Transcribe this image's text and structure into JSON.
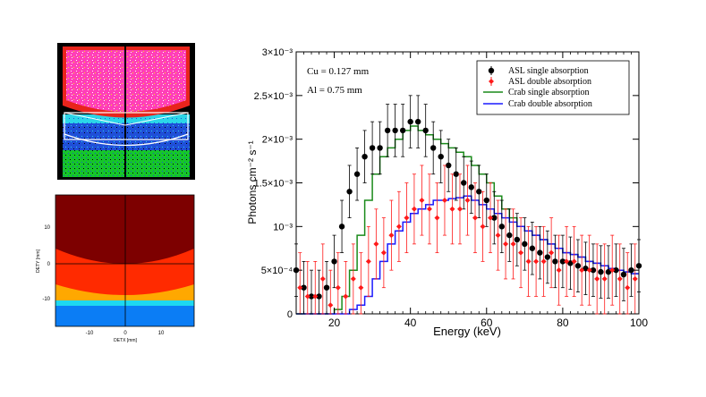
{
  "panels": {
    "detector_image": {
      "colors": {
        "frame": "#000000",
        "pink": "#ff3fb8",
        "red": "#e8241c",
        "yellow": "#f2e21a",
        "cyan": "#2bd6e8",
        "blue": "#1f4fd8",
        "green": "#15c62a",
        "white": "#ffffff"
      }
    },
    "map": {
      "xlabel": "DETX [mm]",
      "ylabel": "DETY [mm]",
      "xticks": [
        "-10",
        "0",
        "10"
      ],
      "yticks": [
        "10",
        "0",
        "-10"
      ],
      "colors": {
        "darkred": "#7d0000",
        "red": "#ff2a00",
        "orange": "#ffa800",
        "cyan": "#1ed8f0",
        "blue": "#0b7df5"
      }
    }
  },
  "chart_data": {
    "type": "line",
    "title": "",
    "xlabel": "Energy (keV)",
    "ylabel": "Photons cm⁻² s⁻¹",
    "xlim": [
      10,
      100
    ],
    "ylim": [
      0,
      0.003
    ],
    "xticks": [
      20,
      40,
      60,
      80,
      100
    ],
    "yticks": [
      0,
      0.0005,
      0.001,
      0.0015,
      0.002,
      0.0025,
      0.003
    ],
    "ytick_labels": [
      "0",
      "5×10⁻⁴",
      "10⁻³",
      "1.5×10⁻³",
      "2×10⁻³",
      "2.5×10⁻³",
      "3×10⁻³"
    ],
    "annotations": [
      "Cu = 0.127 mm",
      "Al = 0.75 mm"
    ],
    "legend": {
      "placement": "top-right",
      "entries": [
        "ASL single absorption",
        "ASL double absorption",
        "Crab single absorption",
        "Crab double absorption"
      ]
    },
    "series": [
      {
        "name": "Crab single absorption",
        "style": "step",
        "color": "#1a8a1a",
        "x": [
          10,
          12,
          14,
          16,
          18,
          20,
          22,
          24,
          26,
          28,
          30,
          32,
          34,
          36,
          38,
          40,
          42,
          44,
          46,
          48,
          50,
          52,
          54,
          56,
          58,
          60,
          62,
          64,
          66,
          68,
          70,
          72,
          74,
          76,
          78,
          80,
          82,
          84,
          86,
          88,
          90,
          92,
          94,
          96,
          98,
          100
        ],
        "values": [
          0,
          0,
          0,
          0,
          0,
          5e-05,
          0.0002,
          0.0005,
          0.0009,
          0.0013,
          0.0016,
          0.0018,
          0.0019,
          0.002,
          0.0021,
          0.00215,
          0.0021,
          0.00205,
          0.002,
          0.00195,
          0.0019,
          0.00185,
          0.0018,
          0.0017,
          0.0016,
          0.0015,
          0.00135,
          0.0012,
          0.0011,
          0.001,
          0.00095,
          0.0009,
          0.00085,
          0.0008,
          0.00075,
          0.0007,
          0.00068,
          0.00065,
          0.0006,
          0.00058,
          0.00055,
          0.00052,
          0.0005,
          0.00048,
          0.00046,
          0.00045
        ]
      },
      {
        "name": "Crab double absorption",
        "style": "step",
        "color": "#1a1aff",
        "x": [
          10,
          12,
          14,
          16,
          18,
          20,
          22,
          24,
          26,
          28,
          30,
          32,
          34,
          36,
          38,
          40,
          42,
          44,
          46,
          48,
          50,
          52,
          54,
          56,
          58,
          60,
          62,
          64,
          66,
          68,
          70,
          72,
          74,
          76,
          78,
          80,
          82,
          84,
          86,
          88,
          90,
          92,
          94,
          96,
          98,
          100
        ],
        "values": [
          0,
          0,
          0,
          0,
          0,
          0,
          0,
          5e-05,
          0.0001,
          0.0002,
          0.0004,
          0.0006,
          0.0008,
          0.00095,
          0.00105,
          0.00115,
          0.0012,
          0.00125,
          0.0013,
          0.0013,
          0.00132,
          0.00133,
          0.00135,
          0.0013,
          0.00125,
          0.0012,
          0.00115,
          0.0011,
          0.00105,
          0.001,
          0.00095,
          0.0009,
          0.00085,
          0.0008,
          0.00075,
          0.0007,
          0.00068,
          0.00065,
          0.0006,
          0.00058,
          0.00055,
          0.00052,
          0.0005,
          0.00048,
          0.00046,
          0.00045
        ]
      },
      {
        "name": "ASL single absorption",
        "style": "points+errors",
        "color": "#000000",
        "x": [
          10,
          12,
          14,
          16,
          18,
          20,
          22,
          24,
          26,
          28,
          30,
          32,
          34,
          36,
          38,
          40,
          42,
          44,
          46,
          48,
          50,
          52,
          54,
          56,
          58,
          60,
          62,
          64,
          66,
          68,
          70,
          72,
          74,
          76,
          78,
          80,
          82,
          84,
          86,
          88,
          90,
          92,
          94,
          96,
          98,
          100
        ],
        "values": [
          0.0005,
          0.0003,
          0.0002,
          0.0002,
          0.0003,
          0.0006,
          0.001,
          0.0014,
          0.0016,
          0.0018,
          0.0019,
          0.0019,
          0.0021,
          0.0021,
          0.0021,
          0.0022,
          0.0022,
          0.0021,
          0.0019,
          0.0018,
          0.0017,
          0.0016,
          0.0015,
          0.00145,
          0.0014,
          0.0013,
          0.0011,
          0.001,
          0.0009,
          0.00085,
          0.0008,
          0.00075,
          0.0007,
          0.00065,
          0.0006,
          0.0006,
          0.00058,
          0.00055,
          0.00052,
          0.0005,
          0.00048,
          0.00048,
          0.0005,
          0.00045,
          0.0005,
          0.00055
        ],
        "errors": [
          0.0003,
          0.0003,
          0.0003,
          0.0003,
          0.0003,
          0.0003,
          0.0003,
          0.0003,
          0.0003,
          0.0003,
          0.0003,
          0.0003,
          0.0003,
          0.0003,
          0.0003,
          0.0003,
          0.0003,
          0.0003,
          0.0003,
          0.0003,
          0.0003,
          0.0003,
          0.0003,
          0.0003,
          0.0003,
          0.0003,
          0.0003,
          0.0003,
          0.0003,
          0.0003,
          0.0003,
          0.0003,
          0.0003,
          0.0003,
          0.0003,
          0.0003,
          0.0003,
          0.0003,
          0.0003,
          0.0003,
          0.0003,
          0.0003,
          0.0003,
          0.0003,
          0.0003,
          0.0003
        ]
      },
      {
        "name": "ASL double absorption",
        "style": "diamonds+errors",
        "color": "#ff1a1a",
        "x": [
          11,
          13,
          15,
          17,
          19,
          21,
          23,
          25,
          27,
          29,
          31,
          33,
          35,
          37,
          39,
          41,
          43,
          45,
          47,
          49,
          51,
          53,
          55,
          57,
          59,
          61,
          63,
          65,
          67,
          69,
          71,
          73,
          75,
          77,
          79,
          81,
          83,
          85,
          87,
          89,
          91,
          93,
          95,
          97,
          99
        ],
        "values": [
          0.0003,
          0.0002,
          0.0002,
          0.0004,
          0.0001,
          0.0003,
          0.0002,
          0.0004,
          0.0003,
          0.0006,
          0.0008,
          0.0007,
          0.0009,
          0.001,
          0.0011,
          0.0012,
          0.0013,
          0.0012,
          0.0011,
          0.0013,
          0.0012,
          0.0012,
          0.0013,
          0.0011,
          0.001,
          0.0011,
          0.0009,
          0.0008,
          0.0008,
          0.0007,
          0.0006,
          0.0006,
          0.0006,
          0.0007,
          0.0005,
          0.0006,
          0.0006,
          0.0005,
          0.0005,
          0.0004,
          0.0004,
          0.0005,
          0.0004,
          0.0003,
          0.0004
        ],
        "errors": [
          0.0004,
          0.0004,
          0.0004,
          0.0004,
          0.0004,
          0.0004,
          0.0004,
          0.0004,
          0.0004,
          0.0004,
          0.0004,
          0.0004,
          0.0004,
          0.0004,
          0.0004,
          0.0004,
          0.0004,
          0.0004,
          0.0004,
          0.0004,
          0.0004,
          0.0004,
          0.0004,
          0.0004,
          0.0004,
          0.0004,
          0.0004,
          0.0004,
          0.0004,
          0.0004,
          0.0004,
          0.0004,
          0.0004,
          0.0004,
          0.0004,
          0.0004,
          0.0004,
          0.0004,
          0.0004,
          0.0004,
          0.0004,
          0.0004,
          0.0004,
          0.0004,
          0.0004
        ]
      }
    ]
  }
}
